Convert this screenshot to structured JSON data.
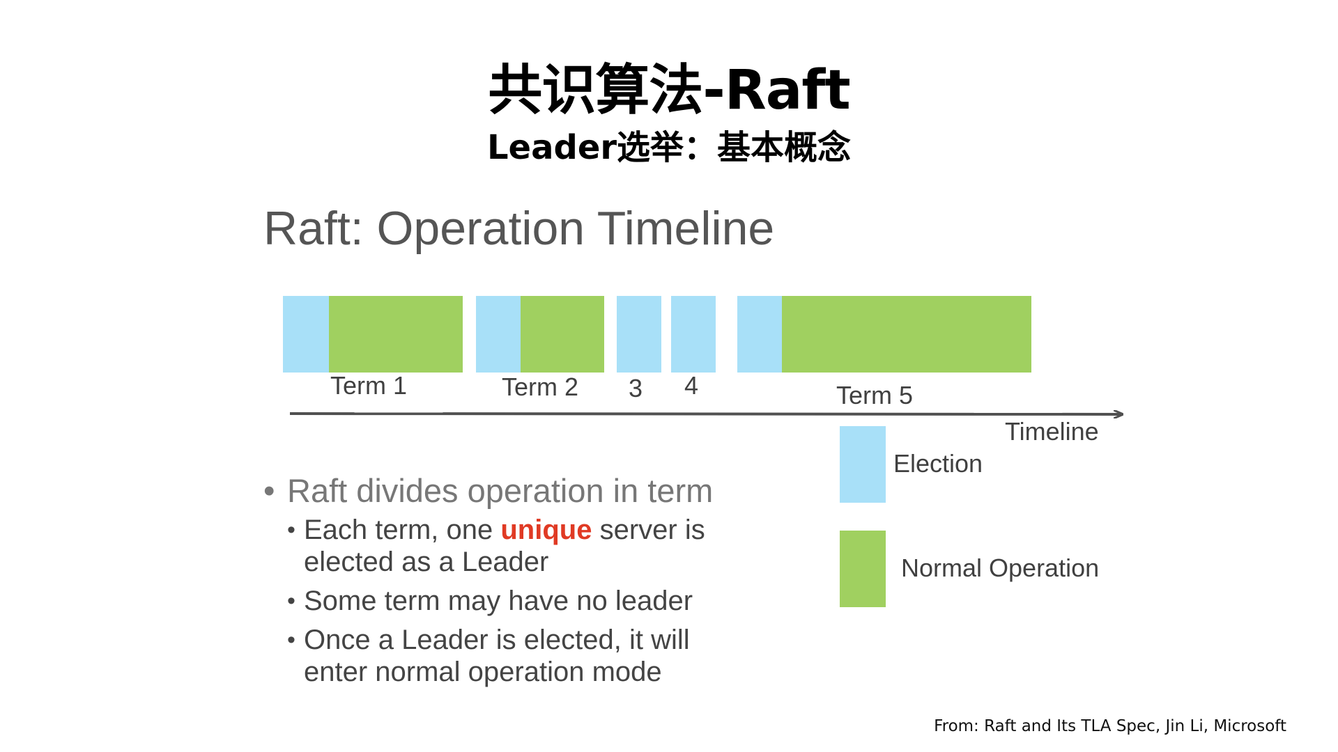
{
  "title": "共识算法-Raft",
  "subtitle": "Leader选举：基本概念",
  "heading": "Raft: Operation Timeline",
  "colors": {
    "election": "#a8e0f8",
    "normal_operation": "#a0d060",
    "highlight": "#e03a24",
    "axis": "#505050"
  },
  "timeline": {
    "terms": [
      {
        "label": "Term 1",
        "election": true,
        "normal_operation": true
      },
      {
        "label": "Term 2",
        "election": true,
        "normal_operation": true
      },
      {
        "label": "3",
        "election": true,
        "normal_operation": false
      },
      {
        "label": "4",
        "election": true,
        "normal_operation": false
      },
      {
        "label": "Term 5",
        "election": true,
        "normal_operation": true
      }
    ],
    "axis_label": "Timeline"
  },
  "legend": {
    "election_label": "Election",
    "normal_label": "Normal Operation"
  },
  "bullets": {
    "main": "Raft divides operation in term",
    "sub1_before": "Each term, one ",
    "sub1_highlight": "unique",
    "sub1_after": " server is elected as a Leader",
    "sub2": "Some term may have no leader",
    "sub3": "Once a Leader is elected, it will enter normal operation mode"
  },
  "source": "From: Raft and Its TLA Spec, Jin Li, Microsoft"
}
